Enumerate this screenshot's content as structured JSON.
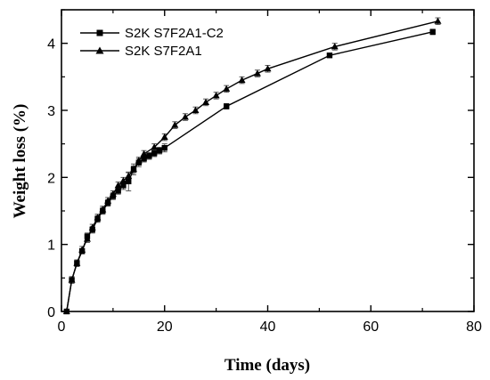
{
  "chart_data": {
    "type": "line",
    "xlabel": "Time (days)",
    "ylabel": "Weight loss (%)",
    "xlim": [
      0,
      80
    ],
    "ylim": [
      0,
      4.5
    ],
    "xticks": [
      0,
      20,
      40,
      60,
      80
    ],
    "yticks": [
      0,
      1,
      2,
      3,
      4
    ],
    "grid": false,
    "legend_position": "top-left",
    "series": [
      {
        "name": "S2K S7F2A1-C2",
        "marker": "square",
        "color": "#000000",
        "x": [
          1,
          2,
          3,
          4,
          5,
          6,
          7,
          8,
          9,
          10,
          11,
          12,
          13,
          14,
          15,
          16,
          17,
          18,
          19,
          20,
          32,
          52,
          72
        ],
        "y": [
          0.0,
          0.47,
          0.72,
          0.9,
          1.12,
          1.22,
          1.38,
          1.5,
          1.62,
          1.72,
          1.8,
          1.88,
          1.94,
          2.12,
          2.22,
          2.28,
          2.32,
          2.36,
          2.4,
          2.44,
          3.06,
          3.82,
          4.17
        ],
        "err": [
          0.02,
          0.03,
          0.04,
          0.04,
          0.05,
          0.05,
          0.05,
          0.05,
          0.05,
          0.05,
          0.05,
          0.06,
          0.14,
          0.08,
          0.06,
          0.05,
          0.05,
          0.05,
          0.05,
          0.06,
          0.04,
          0.03,
          0.04
        ]
      },
      {
        "name": "S2K S7F2A1",
        "marker": "triangle",
        "color": "#000000",
        "x": [
          1,
          2,
          3,
          4,
          5,
          6,
          7,
          8,
          9,
          10,
          11,
          12,
          13,
          14,
          15,
          16,
          18,
          20,
          22,
          24,
          26,
          28,
          30,
          32,
          35,
          38,
          40,
          53,
          73
        ],
        "y": [
          0.0,
          0.47,
          0.72,
          0.92,
          1.08,
          1.25,
          1.4,
          1.52,
          1.65,
          1.75,
          1.88,
          1.95,
          2.02,
          2.12,
          2.25,
          2.35,
          2.45,
          2.6,
          2.78,
          2.9,
          3.0,
          3.12,
          3.22,
          3.32,
          3.45,
          3.55,
          3.62,
          3.95,
          4.33
        ]
      }
    ]
  }
}
